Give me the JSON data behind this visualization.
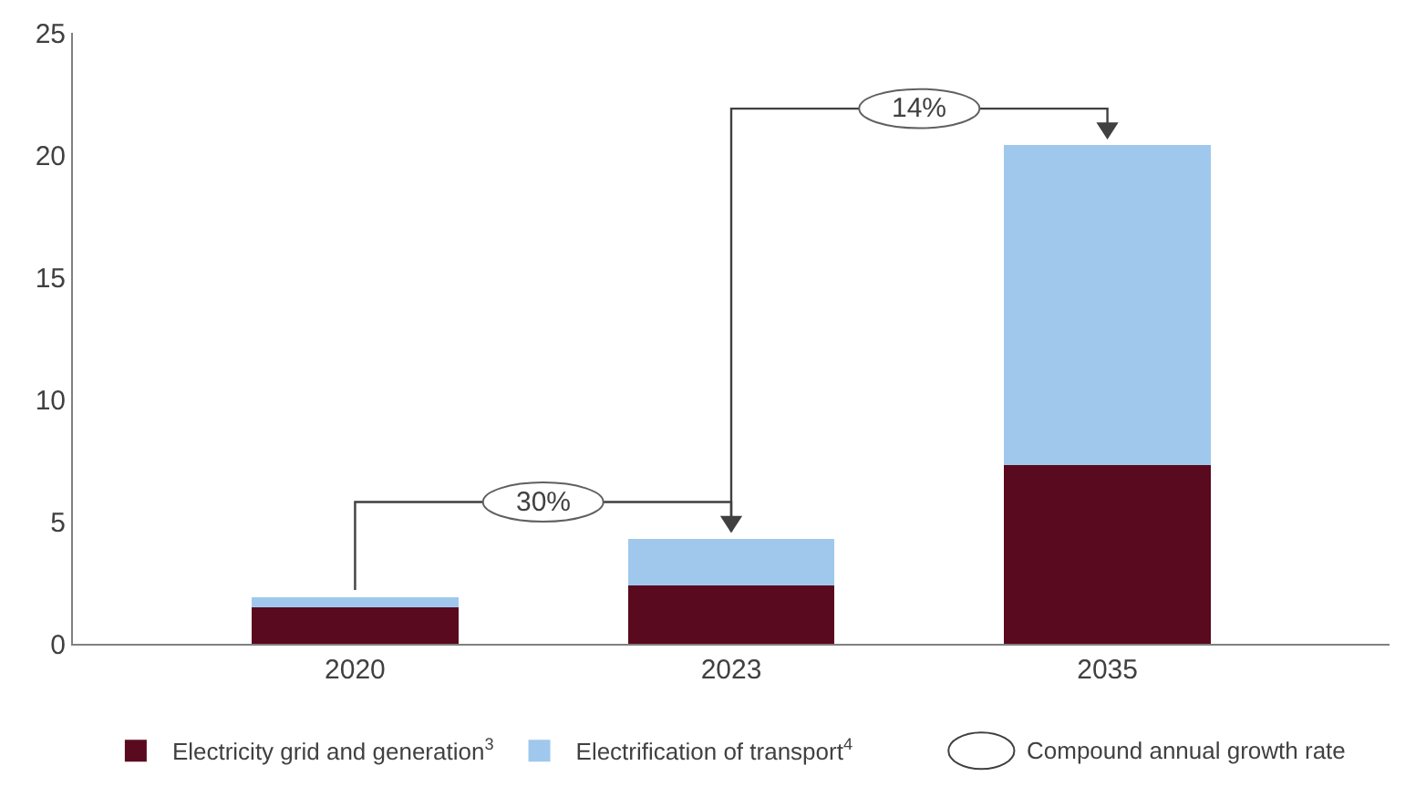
{
  "chart_data": {
    "type": "bar",
    "stacked": true,
    "categories": [
      "2020",
      "2023",
      "2035"
    ],
    "series": [
      {
        "name": "Electricity grid and generation$^{3}$",
        "color": "#5a0a1e",
        "values": [
          1.5,
          2.4,
          7.3
        ]
      },
      {
        "name": "Electrification of transport$^{4}$",
        "color": "#a0c8ec",
        "values": [
          0.4,
          1.9,
          13.1
        ]
      }
    ],
    "ylim": [
      0,
      25
    ],
    "yticks": [
      0,
      5,
      10,
      15,
      20,
      25
    ],
    "legend": "bottom",
    "annotations": [
      "30%",
      "14%",
      "Compound annual growth rate"
    ]
  }
}
